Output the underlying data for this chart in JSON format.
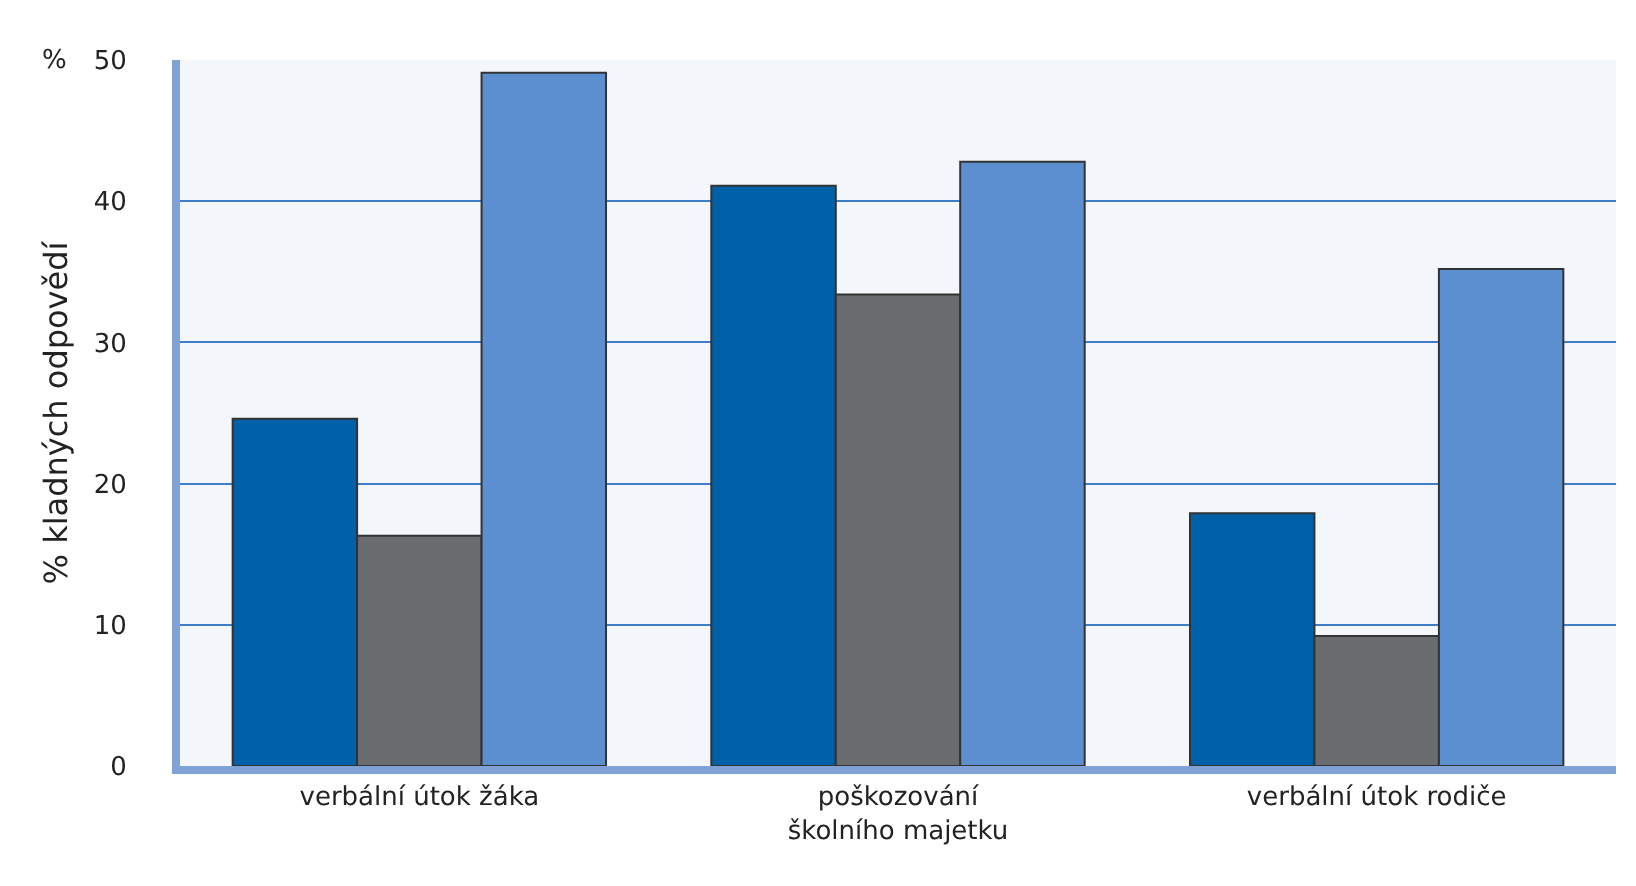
{
  "chart_data": {
    "type": "bar",
    "ylabel": "% kladných odpovědí",
    "annotations": [
      "%"
    ],
    "categories": [
      "verbální útok žáka",
      "poškozování školního majetku",
      "verbální útok rodiče"
    ],
    "series": [
      {
        "color": "#0061a8",
        "values": [
          24.6,
          41.1,
          17.9
        ]
      },
      {
        "color": "#6b6c70",
        "values": [
          16.3,
          33.4,
          9.2
        ]
      },
      {
        "color": "#5b8fd0",
        "values": [
          49.1,
          42.8,
          35.2
        ]
      }
    ],
    "ylim": [
      0,
      50
    ],
    "yticks": [
      0,
      10,
      20,
      30,
      40,
      50
    ],
    "grid": "y"
  }
}
